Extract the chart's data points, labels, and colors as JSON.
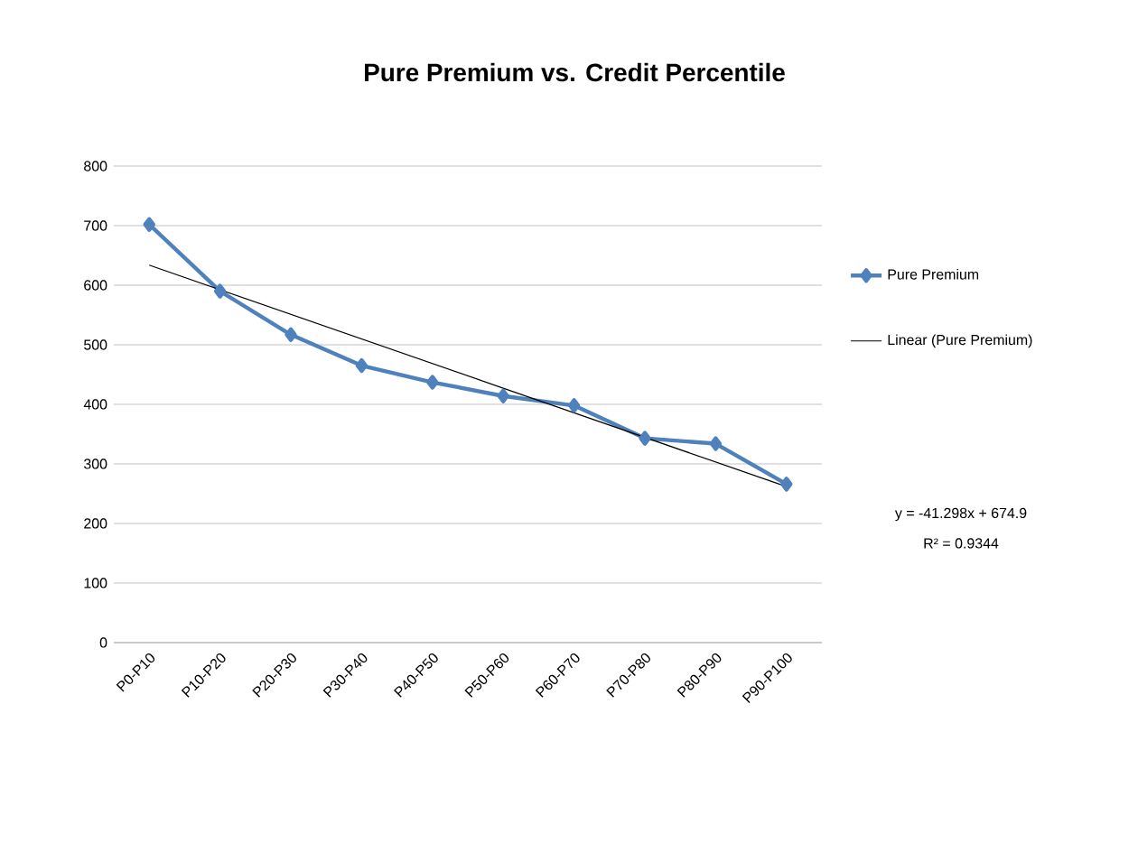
{
  "chart_data": {
    "type": "line",
    "title": "Pure Premium vs. Credit Percentile",
    "categories": [
      "P0-P10",
      "P10-P20",
      "P20-P30",
      "P30-P40",
      "P40-P50",
      "P50-P60",
      "P60-P70",
      "P70-P80",
      "P80-P90",
      "P90-P100"
    ],
    "series": [
      {
        "name": "Pure Premium",
        "color": "#4f81bd",
        "marker": "diamond",
        "values": [
          702,
          590,
          517,
          465,
          437,
          414,
          398,
          343,
          334,
          266
        ]
      },
      {
        "name": "Linear (Pure Premium)",
        "color": "#000000",
        "marker": "none",
        "values": [
          633.6,
          592.3,
          551.0,
          509.7,
          468.4,
          427.1,
          385.8,
          344.5,
          303.2,
          261.9
        ]
      }
    ],
    "ylim": [
      0,
      800
    ],
    "yticks": [
      0,
      100,
      200,
      300,
      400,
      500,
      600,
      700,
      800
    ],
    "grid": "y",
    "legend": "right",
    "annotations": [
      "y = -41.298x + 674.9",
      "R² = 0.9344"
    ]
  }
}
